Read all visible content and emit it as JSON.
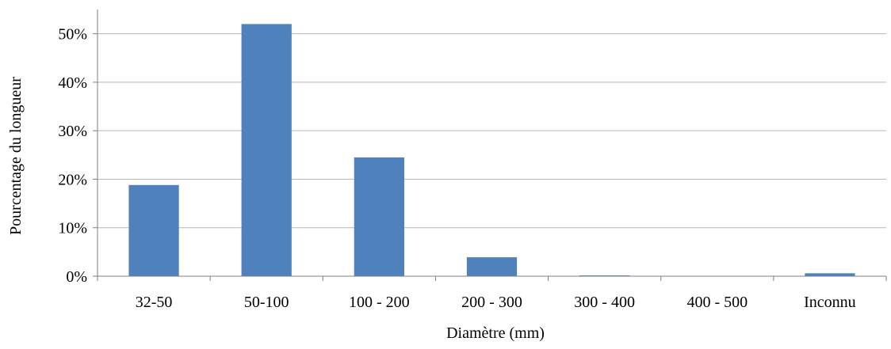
{
  "chart_data": {
    "type": "bar",
    "title": "",
    "xlabel": "Diamètre (mm)",
    "ylabel": "Pourcentage du longueur",
    "categories": [
      "32-50",
      "50-100",
      "100 - 200",
      "200 - 300",
      "300 - 400",
      "400 - 500",
      "Inconnu"
    ],
    "values": [
      18.8,
      52.0,
      24.5,
      3.9,
      0.15,
      0.0,
      0.6
    ],
    "ylim": [
      0,
      55
    ],
    "yticks": [
      0,
      10,
      20,
      30,
      40,
      50
    ],
    "ytick_labels": [
      "0%",
      "10%",
      "20%",
      "30%",
      "40%",
      "50%"
    ],
    "grid": true,
    "legend": "none",
    "bar_color": "#4f81bd"
  }
}
